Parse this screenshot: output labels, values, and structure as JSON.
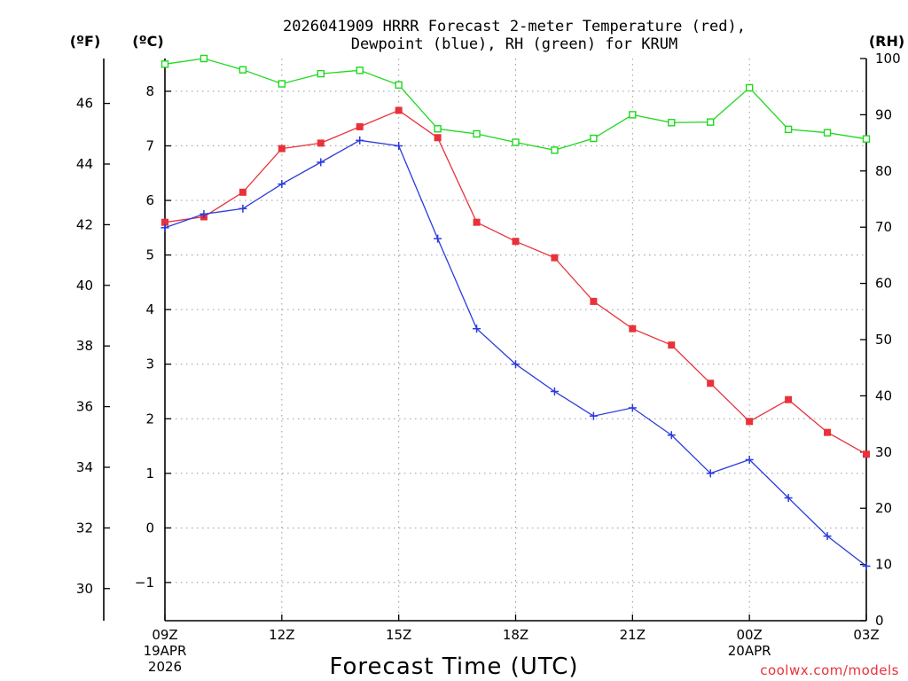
{
  "title_line1": "2026041909 HRRR Forecast 2-meter Temperature (red),",
  "title_line2": "Dewpoint (blue), RH (green) for KRUM",
  "unit_f": "(ºF)",
  "unit_c": "(ºC)",
  "unit_rh": "(RH)",
  "xlabel": "Forecast Time (UTC)",
  "credit": "coolwx.com/models",
  "chart_data": {
    "type": "line",
    "title": "2026041909 HRRR Forecast 2-meter Temperature (red), Dewpoint (blue), RH (green) for KRUM",
    "xlabel": "Forecast Time (UTC)",
    "x_hours": [
      9,
      10,
      11,
      12,
      13,
      14,
      15,
      16,
      17,
      18,
      19,
      20,
      21,
      22,
      23,
      24,
      25,
      26,
      27
    ],
    "x_ticks": [
      {
        "hour": 9,
        "label": "09Z",
        "date1": "19APR",
        "date2": "2026"
      },
      {
        "hour": 12,
        "label": "12Z"
      },
      {
        "hour": 15,
        "label": "15Z"
      },
      {
        "hour": 18,
        "label": "18Z"
      },
      {
        "hour": 21,
        "label": "21Z"
      },
      {
        "hour": 24,
        "label": "00Z",
        "date1": "20APR"
      },
      {
        "hour": 27,
        "label": "03Z"
      }
    ],
    "xlim": [
      9,
      27
    ],
    "y_celsius": {
      "label": "(ºC)",
      "ylim": [
        -1.7,
        8.6
      ],
      "ticks": [
        -1,
        0,
        1,
        2,
        3,
        4,
        5,
        6,
        7,
        8
      ]
    },
    "y_fahrenheit": {
      "label": "(ºF)",
      "ticks": [
        30,
        32,
        34,
        36,
        38,
        40,
        42,
        44,
        46
      ]
    },
    "y_rh": {
      "label": "(RH)",
      "ylim": [
        0,
        100
      ],
      "ticks": [
        0,
        10,
        20,
        30,
        40,
        50,
        60,
        70,
        80,
        90,
        100
      ]
    },
    "series": [
      {
        "name": "Temperature",
        "axis": "celsius",
        "color": "#e8323a",
        "marker": "filled-square",
        "values": [
          5.6,
          5.7,
          6.15,
          6.95,
          7.05,
          7.35,
          7.65,
          7.15,
          5.6,
          5.25,
          4.95,
          4.15,
          3.65,
          3.35,
          2.65,
          1.95,
          2.35,
          1.75,
          1.35
        ]
      },
      {
        "name": "Dewpoint",
        "axis": "celsius",
        "color": "#2b3bdd",
        "marker": "plus",
        "values": [
          5.5,
          5.75,
          5.85,
          6.3,
          6.7,
          7.1,
          7.0,
          5.3,
          3.65,
          3.0,
          2.5,
          2.05,
          2.2,
          1.7,
          1.0,
          1.25,
          0.55,
          -0.15,
          -0.7
        ]
      },
      {
        "name": "RH",
        "axis": "rh",
        "color": "#1ed81e",
        "marker": "open-square",
        "values": [
          99,
          100,
          98,
          95.5,
          97.3,
          97.9,
          95.3,
          87.5,
          86.6,
          85.1,
          83.7,
          85.8,
          90,
          88.6,
          88.7,
          94.8,
          87.4,
          86.8,
          85.7
        ]
      }
    ]
  }
}
